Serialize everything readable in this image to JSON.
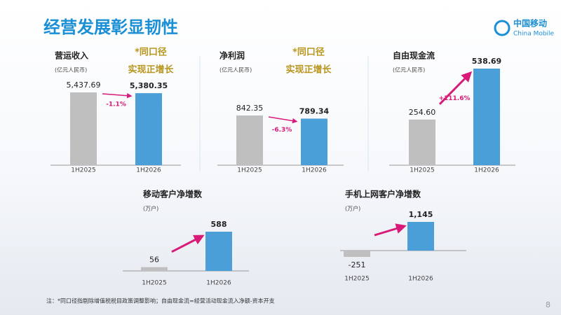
{
  "slide": {
    "title": "经营发展彰显韧性",
    "footnote": "注：*同口径指剔除增值税税目政策调整影响；自由现金流=经营活动现金流入净额-资本开支",
    "page": 8
  },
  "logo": {
    "cn": "中国移动",
    "en": "China Mobile"
  },
  "chart_data": [
    {
      "type": "bar",
      "title": "营运收入",
      "subtitle": "(亿元人民币)",
      "categories": [
        "1H2025",
        "1H2026"
      ],
      "values": [
        5437.69,
        5380.35
      ],
      "value_labels": [
        "5,437.69",
        "5,380.35"
      ],
      "colors": [
        "#bfbfbf",
        "#4a9fd8"
      ],
      "annotations": [
        "*同口径",
        "实现正增长"
      ],
      "change_label": "-1.1%"
    },
    {
      "type": "bar",
      "title": "净利润",
      "subtitle": "(亿元人民币)",
      "categories": [
        "1H2025",
        "1H2026"
      ],
      "values": [
        842.35,
        789.34
      ],
      "value_labels": [
        "842.35",
        "789.34"
      ],
      "colors": [
        "#bfbfbf",
        "#4a9fd8"
      ],
      "annotations": [
        "*同口径",
        "实现正增长"
      ],
      "change_label": "-6.3%"
    },
    {
      "type": "bar",
      "title": "自由现金流",
      "subtitle": "(亿元人民币)",
      "categories": [
        "1H2025",
        "1H2026"
      ],
      "values": [
        254.6,
        538.69
      ],
      "value_labels": [
        "254.60",
        "538.69"
      ],
      "colors": [
        "#bfbfbf",
        "#4a9fd8"
      ],
      "change_label": "+111.6%"
    },
    {
      "type": "bar",
      "title": "移动客户净增数",
      "subtitle": "(万户)",
      "categories": [
        "1H2025",
        "1H2026"
      ],
      "values": [
        56,
        588
      ],
      "colors": [
        "#bfbfbf",
        "#4a9fd8"
      ]
    },
    {
      "type": "bar",
      "title": "手机上网客户净增数",
      "subtitle": "(万户)",
      "categories": [
        "1H2025",
        "1H2026"
      ],
      "values": [
        -251,
        1145
      ],
      "value_labels": [
        "-251",
        "1,145"
      ],
      "colors": [
        "#bfbfbf",
        "#4a9fd8"
      ]
    }
  ]
}
